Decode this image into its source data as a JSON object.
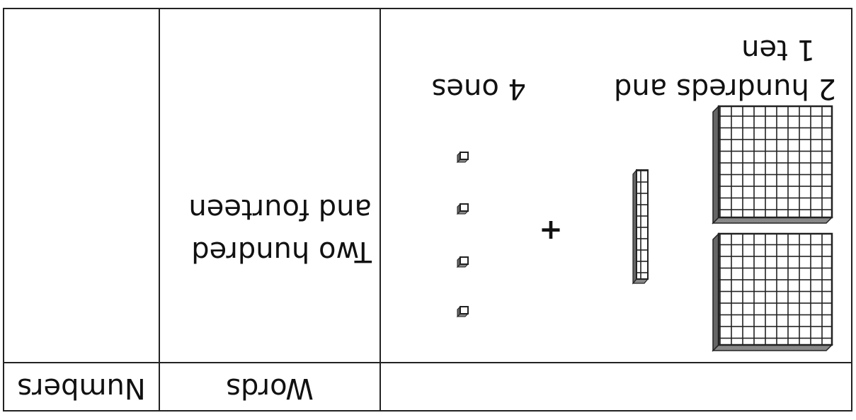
{
  "table": {
    "header": {
      "words": "Words",
      "numbers": "Numbers"
    },
    "model": {
      "hundreds_tens": [
        "2 hundreds and",
        "1 ten"
      ],
      "ones": "4 ones",
      "operator": "+"
    },
    "words": [
      "Two hundred",
      "and fourteen"
    ]
  }
}
